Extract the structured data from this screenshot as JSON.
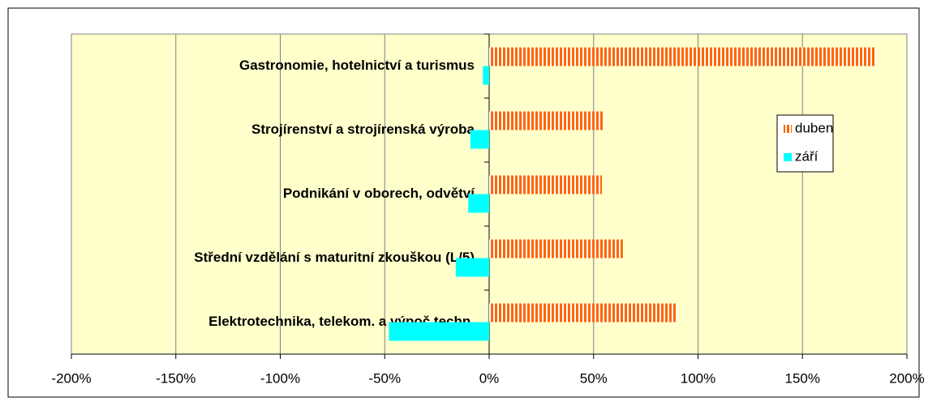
{
  "chart_data": {
    "type": "barh",
    "categories": [
      "Gastronomie, hotelnictví a turismus",
      "Strojírenství a strojírenská výroba",
      "Podnikání v oborech, odvětví",
      "Střední vzdělání s maturitní zkouškou (L/5)",
      "Elektrotechnika, telekom. a výpoč.techn."
    ],
    "series": [
      {
        "name": "duben",
        "color": "#ff6600",
        "hatch": "vertical",
        "values": [
          185,
          55,
          54,
          64,
          90
        ]
      },
      {
        "name": "září",
        "color": "#00ffff",
        "values": [
          -3,
          -9,
          -10,
          -16,
          -48
        ]
      }
    ],
    "xlim": [
      -200,
      200
    ],
    "xticks": [
      {
        "value": -200,
        "label": "-200%"
      },
      {
        "value": -150,
        "label": "-150%"
      },
      {
        "value": -100,
        "label": "-100%"
      },
      {
        "value": -50,
        "label": "-50%"
      },
      {
        "value": 0,
        "label": "0%"
      },
      {
        "value": 50,
        "label": "50%"
      },
      {
        "value": 100,
        "label": "100%"
      },
      {
        "value": 150,
        "label": "150%"
      },
      {
        "value": 200,
        "label": "200%"
      }
    ],
    "grid": true,
    "legend": "right"
  }
}
